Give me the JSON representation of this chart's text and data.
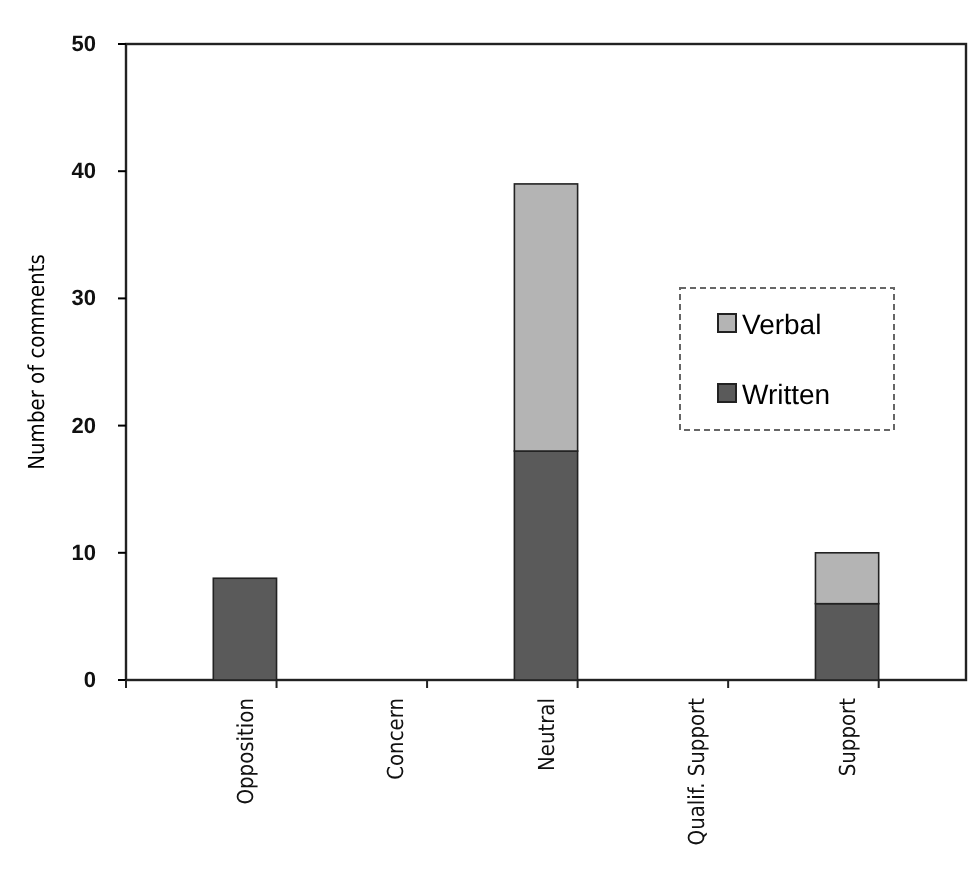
{
  "chart_data": {
    "type": "bar",
    "stacked": true,
    "ylabel": "Number of comments",
    "categories": [
      "Opposition",
      "Concern",
      "Neutral",
      "Qualif. Support",
      "Support"
    ],
    "series": [
      {
        "name": "Written",
        "color": "#5a5a5a",
        "values": [
          8,
          0,
          18,
          0,
          6
        ]
      },
      {
        "name": "Verbal",
        "color": "#b4b4b4",
        "values": [
          0,
          0,
          21,
          0,
          4
        ]
      }
    ],
    "ylim": [
      0,
      50
    ],
    "yticks": [
      0,
      10,
      20,
      30,
      40,
      50
    ],
    "grid": false,
    "legend": "right"
  }
}
